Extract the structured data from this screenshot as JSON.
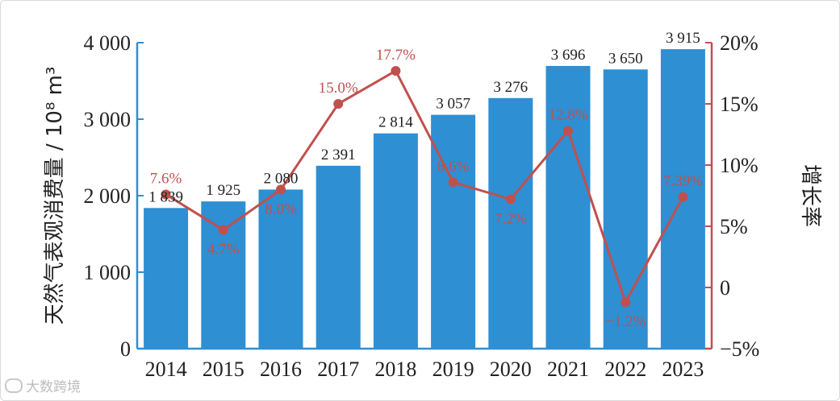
{
  "watermark": {
    "text": "大数跨境"
  },
  "chart_data": {
    "type": "bar",
    "categories": [
      "2014",
      "2015",
      "2016",
      "2017",
      "2018",
      "2019",
      "2020",
      "2021",
      "2022",
      "2023"
    ],
    "series": [
      {
        "values": [
          1839,
          1925,
          2080,
          2391,
          2814,
          3057,
          3276,
          3696,
          3650,
          3915
        ],
        "labels": [
          "1 839",
          "1 925",
          "2 080",
          "2 391",
          "2 814",
          "3 057",
          "3 276",
          "3 696",
          "3 650",
          "3 915"
        ],
        "color": "#2e8fd3",
        "type": "bar",
        "axis": "left"
      },
      {
        "values": [
          7.6,
          4.7,
          8.0,
          15.0,
          17.7,
          8.6,
          7.2,
          12.8,
          -1.2,
          7.39
        ],
        "labels": [
          "7.6%",
          "4.7%",
          "8.0%",
          "15.0%",
          "17.7%",
          "8.6%",
          "7.2%",
          "12.8%",
          "−1.2%",
          "7.39%"
        ],
        "color": "#c0504d",
        "type": "line",
        "axis": "right"
      }
    ],
    "ylabel_left": "天然气表观消费量 / 10⁸ m³",
    "ylabel_right": "增长率",
    "ylim_left": [
      0,
      4000
    ],
    "ylim_right": [
      -5,
      20
    ],
    "yticks_left": [
      "0",
      "1 000",
      "2 000",
      "3 000",
      "4 000"
    ],
    "yticks_right": [
      "−5%",
      "0",
      "5%",
      "10%",
      "15%",
      "20%"
    ],
    "grid": false
  }
}
